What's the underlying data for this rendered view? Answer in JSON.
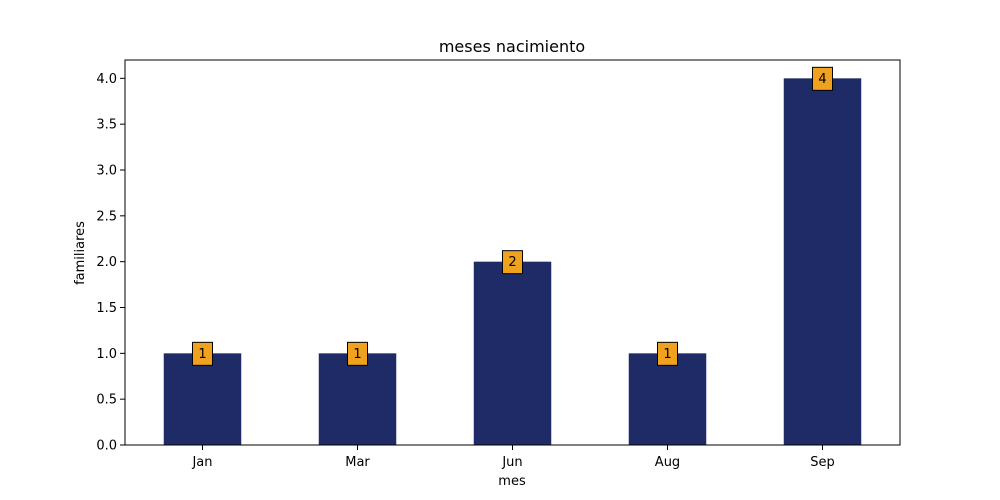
{
  "chart_data": {
    "type": "bar",
    "title": "meses nacimiento",
    "xlabel": "mes",
    "ylabel": "familiares",
    "categories": [
      "Jan",
      "Mar",
      "Jun",
      "Aug",
      "Sep"
    ],
    "values": [
      1,
      1,
      2,
      1,
      4
    ],
    "ylim": [
      0,
      4.2
    ],
    "yticks": [
      "0.0",
      "0.5",
      "1.0",
      "1.5",
      "2.0",
      "2.5",
      "3.0",
      "3.5",
      "4.0"
    ],
    "data_labels": [
      "1",
      "1",
      "2",
      "1",
      "4"
    ],
    "grid": false,
    "legend": "none",
    "colors": {
      "bar": "#1f2b67",
      "label_box": "#f0a21e",
      "label_border": "#000000"
    }
  }
}
